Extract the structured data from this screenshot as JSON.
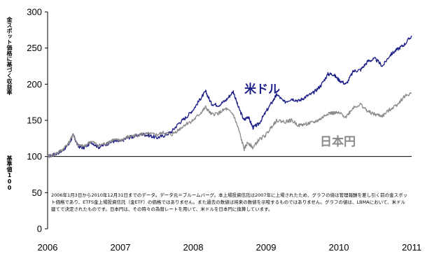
{
  "y_axis_label": "金スポット価格に基づく収益率",
  "y_axis_label_2": "基準値100",
  "note": "2006年1月3日から2010年12月31日までのデータ。データ元＝ブルームバーグ。本上場投資信託は2007年に上場されたため、グラフの値は管理報酬を差し引く前の金スポット価格であり、ETFS金上場投資信託（金ETF）の価格ではありません。また過去の数値は将来の数値を示唆するものではありません。グラフの値は、LBMAにおいて、米ドル建てで決定されたものです。日本円は、その時々の為替レートを用いて、米ドルを日本円に換算しています。",
  "colors": {
    "usd": "#1c1e87",
    "jpy": "#8a8a8a",
    "axis": "#000000"
  },
  "chart_data": {
    "type": "line",
    "ylim": [
      0,
      300
    ],
    "yticks": [
      0,
      50,
      100,
      150,
      200,
      250,
      300
    ],
    "xlim": [
      2006,
      2011
    ],
    "xticks": [
      2006,
      2007,
      2008,
      2009,
      2010,
      2011
    ],
    "baseline": 100,
    "series": [
      {
        "name": "米ドル",
        "color": "#1c1e87",
        "x": [
          2006.0,
          2006.1,
          2006.2,
          2006.3,
          2006.35,
          2006.42,
          2006.5,
          2006.6,
          2006.7,
          2006.8,
          2006.9,
          2007.0,
          2007.1,
          2007.2,
          2007.3,
          2007.4,
          2007.5,
          2007.6,
          2007.7,
          2007.8,
          2007.9,
          2008.0,
          2008.1,
          2008.17,
          2008.25,
          2008.35,
          2008.45,
          2008.55,
          2008.62,
          2008.7,
          2008.75,
          2008.82,
          2008.9,
          2009.0,
          2009.1,
          2009.15,
          2009.25,
          2009.35,
          2009.45,
          2009.55,
          2009.65,
          2009.75,
          2009.85,
          2009.92,
          2010.0,
          2010.1,
          2010.2,
          2010.3,
          2010.4,
          2010.5,
          2010.6,
          2010.7,
          2010.8,
          2010.9,
          2011.0
        ],
        "y": [
          100,
          103,
          108,
          118,
          130,
          114,
          112,
          120,
          113,
          117,
          121,
          121,
          126,
          128,
          131,
          129,
          126,
          129,
          134,
          146,
          154,
          165,
          180,
          190,
          173,
          171,
          178,
          190,
          168,
          150,
          156,
          140,
          145,
          162,
          178,
          186,
          175,
          180,
          177,
          183,
          188,
          198,
          214,
          214,
          206,
          200,
          218,
          220,
          232,
          235,
          225,
          240,
          248,
          255,
          267
        ]
      },
      {
        "name": "日本円",
        "color": "#8a8a8a",
        "x": [
          2006.0,
          2006.1,
          2006.2,
          2006.3,
          2006.35,
          2006.42,
          2006.5,
          2006.6,
          2006.7,
          2006.8,
          2006.9,
          2007.0,
          2007.1,
          2007.2,
          2007.3,
          2007.4,
          2007.5,
          2007.6,
          2007.7,
          2007.8,
          2007.9,
          2008.0,
          2008.1,
          2008.17,
          2008.25,
          2008.35,
          2008.45,
          2008.55,
          2008.62,
          2008.7,
          2008.75,
          2008.82,
          2008.9,
          2009.0,
          2009.1,
          2009.15,
          2009.25,
          2009.35,
          2009.45,
          2009.55,
          2009.65,
          2009.75,
          2009.85,
          2009.92,
          2010.0,
          2010.1,
          2010.2,
          2010.3,
          2010.4,
          2010.5,
          2010.6,
          2010.7,
          2010.8,
          2010.9,
          2011.0
        ],
        "y": [
          100,
          103,
          109,
          120,
          131,
          115,
          114,
          121,
          115,
          118,
          123,
          122,
          127,
          129,
          131,
          131,
          130,
          133,
          130,
          137,
          145,
          150,
          160,
          168,
          158,
          160,
          166,
          158,
          138,
          110,
          120,
          112,
          123,
          130,
          145,
          150,
          148,
          150,
          143,
          145,
          147,
          152,
          160,
          160,
          160,
          155,
          168,
          172,
          162,
          158,
          156,
          165,
          172,
          183,
          188
        ]
      }
    ]
  }
}
